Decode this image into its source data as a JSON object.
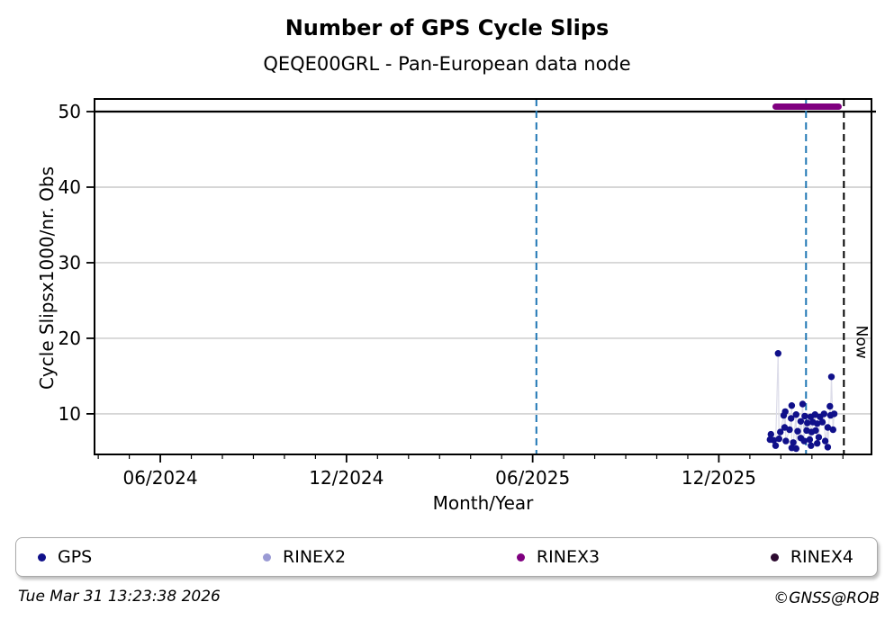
{
  "title": "Number of GPS Cycle Slips",
  "subtitle": "QEQE00GRL - Pan-European data node",
  "axes": {
    "xlabel": "Month/Year",
    "ylabel": "Cycle Slipsx1000/nr. Obs"
  },
  "legend": {
    "items": [
      {
        "label": "GPS",
        "color": "#10108a"
      },
      {
        "label": "RINEX2",
        "color": "#9a9ad4"
      },
      {
        "label": "RINEX3",
        "color": "#800080"
      },
      {
        "label": "RINEX4",
        "color": "#2d0b30"
      }
    ]
  },
  "footer": {
    "timestamp": "Tue Mar 31 13:23:38 2026",
    "credit": "©GNSS@ROB"
  },
  "chart_data": {
    "type": "scatter",
    "title": "Number of GPS Cycle Slips",
    "subtitle": "QEQE00GRL - Pan-European data node",
    "xlabel": "Month/Year",
    "ylabel": "Cycle Slipsx1000/nr. Obs",
    "x_unit": "months since 2024-01 (Jan 2024 = 0)",
    "xlim": [
      2.88,
      27.92
    ],
    "ylim": [
      4.63,
      51.67
    ],
    "grid": "horizontal-only",
    "grid_color": "#c9c9c9",
    "xticks": [
      {
        "t": 5,
        "label": "06/2024"
      },
      {
        "t": 11,
        "label": "12/2024"
      },
      {
        "t": 17,
        "label": "06/2025"
      },
      {
        "t": 23,
        "label": "12/2025"
      }
    ],
    "minor_xticks": "every month",
    "yticks": [
      10,
      20,
      30,
      40,
      50
    ],
    "cap_line": {
      "value": 50,
      "color": "#000000"
    },
    "vlines": [
      {
        "t": 17.12,
        "color": "#1f77b4",
        "style": "dashed"
      },
      {
        "t": 25.81,
        "color": "#1f77b4",
        "style": "dashed"
      },
      {
        "t": 27.03,
        "color": "#000000",
        "style": "dashed",
        "label": "Now"
      }
    ],
    "now_label_value": 19.5,
    "series": [
      {
        "name": "GPS",
        "color": "#10108a",
        "marker": "dot",
        "line_color": "#dcdce9",
        "points": [
          [
            24.65,
            6.6
          ],
          [
            24.68,
            7.3
          ],
          [
            24.77,
            6.5
          ],
          [
            24.83,
            5.8
          ],
          [
            24.91,
            18.0
          ],
          [
            24.94,
            6.7
          ],
          [
            24.98,
            7.6
          ],
          [
            25.09,
            9.8
          ],
          [
            25.12,
            8.2
          ],
          [
            25.14,
            10.3
          ],
          [
            25.16,
            6.4
          ],
          [
            25.28,
            7.9
          ],
          [
            25.33,
            9.4
          ],
          [
            25.35,
            11.1
          ],
          [
            25.35,
            5.5
          ],
          [
            25.4,
            6.2
          ],
          [
            25.49,
            9.9
          ],
          [
            25.49,
            5.4
          ],
          [
            25.54,
            7.7
          ],
          [
            25.64,
            9.0
          ],
          [
            25.64,
            6.8
          ],
          [
            25.7,
            11.3
          ],
          [
            25.75,
            6.4
          ],
          [
            25.77,
            9.7
          ],
          [
            25.83,
            7.8
          ],
          [
            25.85,
            8.8
          ],
          [
            25.93,
            6.6
          ],
          [
            25.96,
            9.6
          ],
          [
            25.97,
            5.8
          ],
          [
            25.99,
            7.6
          ],
          [
            26.03,
            8.9
          ],
          [
            26.1,
            9.9
          ],
          [
            26.12,
            7.8
          ],
          [
            26.17,
            8.7
          ],
          [
            26.17,
            6.1
          ],
          [
            26.22,
            6.9
          ],
          [
            26.26,
            9.6
          ],
          [
            26.34,
            8.9
          ],
          [
            26.39,
            10.0
          ],
          [
            26.43,
            6.4
          ],
          [
            26.51,
            8.2
          ],
          [
            26.51,
            5.6
          ],
          [
            26.58,
            11.0
          ],
          [
            26.6,
            9.8
          ],
          [
            26.63,
            14.9
          ],
          [
            26.68,
            7.9
          ],
          [
            26.72,
            10.0
          ]
        ]
      },
      {
        "name": "RINEX2",
        "color": "#9a9ad4",
        "points": []
      },
      {
        "name": "RINEX3",
        "color": "#800080",
        "segment": {
          "t_start": 24.83,
          "t_end": 26.86,
          "value": 50.66
        }
      },
      {
        "name": "RINEX4",
        "color": "#2d0b30",
        "points": []
      }
    ]
  }
}
